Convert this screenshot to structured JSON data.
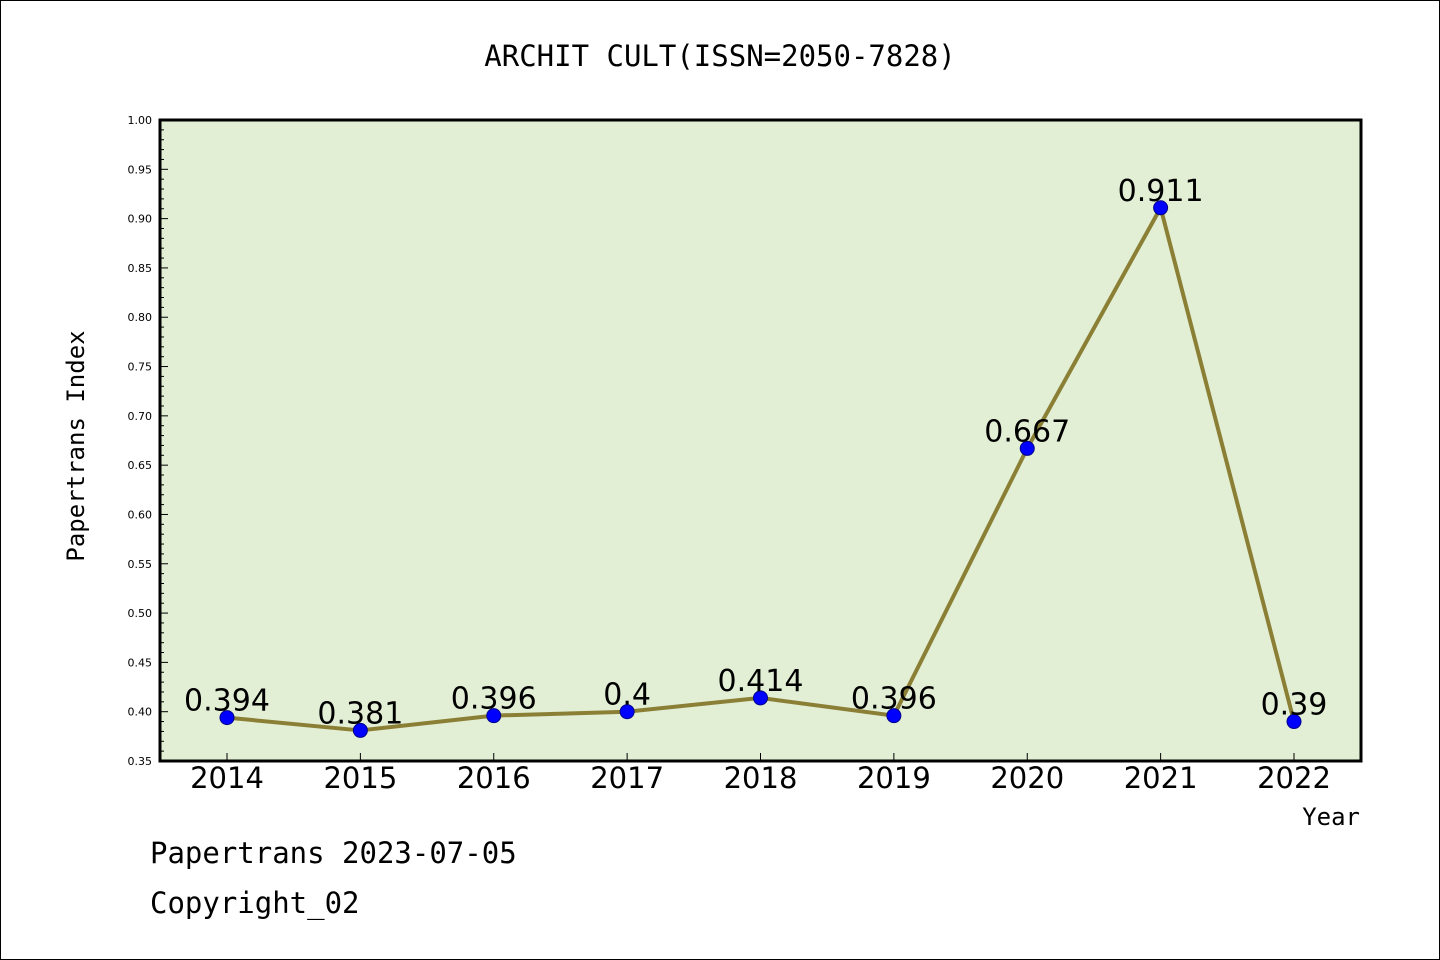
{
  "footer": {
    "date_line": "Papertrans 2023-07-05",
    "copyright_line": "Copyright_02"
  },
  "colors": {
    "plot_background": "#e2efd5",
    "line": "#8b7f35",
    "marker_fill": "#0000ff",
    "marker_edge": "#00008b",
    "axis": "#000000"
  },
  "chart_data": {
    "type": "line",
    "title": "ARCHIT CULT(ISSN=2050-7828)",
    "xlabel": "Year",
    "ylabel": "Papertrans Index",
    "categories": [
      "2014",
      "2015",
      "2016",
      "2017",
      "2018",
      "2019",
      "2020",
      "2021",
      "2022"
    ],
    "series": [
      {
        "values": [
          0.394,
          0.381,
          0.396,
          0.4,
          0.414,
          0.396,
          0.667,
          0.911,
          0.39
        ],
        "labels": [
          "0.394",
          "0.381",
          "0.396",
          "0.4",
          "0.414",
          "0.396",
          "0.667",
          "0.911",
          "0.39"
        ]
      }
    ],
    "ylim": [
      0.35,
      1.0
    ],
    "yticks": [
      "0.35",
      "0.40",
      "0.45",
      "0.50",
      "0.55",
      "0.60",
      "0.65",
      "0.70",
      "0.75",
      "0.80",
      "0.85",
      "0.90",
      "0.95",
      "1.00"
    ],
    "grid": false,
    "legend": "none"
  }
}
